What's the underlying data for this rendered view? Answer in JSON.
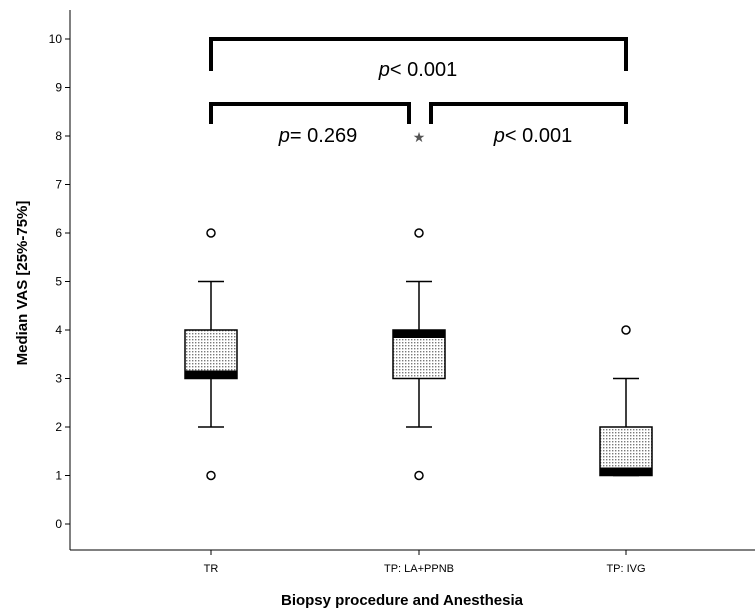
{
  "chart_data": {
    "type": "boxplot",
    "xlabel": "Biopsy procedure and Anesthesia",
    "ylabel": "Median VAS [25%-75%]",
    "ylim": [
      0,
      10
    ],
    "yticks": [
      0,
      1,
      2,
      3,
      4,
      5,
      6,
      7,
      8,
      9,
      10
    ],
    "grid": false,
    "categories": [
      "TR",
      "TP: LA+PPNB",
      "TP: IVG"
    ],
    "boxes": [
      {
        "category": "TR",
        "whisker_low": 2,
        "q1": 3,
        "median": 3,
        "q3": 4,
        "whisker_high": 5,
        "outliers": [
          6,
          1
        ],
        "extremes": []
      },
      {
        "category": "TP: LA+PPNB",
        "whisker_low": 2,
        "q1": 3,
        "median": 4,
        "q3": 4,
        "whisker_high": 5,
        "outliers": [
          6,
          1
        ],
        "extremes": [
          8
        ]
      },
      {
        "category": "TP: IVG",
        "whisker_low": 1,
        "q1": 1,
        "median": 1,
        "q3": 2,
        "whisker_high": 3,
        "outliers": [
          4
        ],
        "extremes": []
      }
    ],
    "comparisons": [
      {
        "from": "TR",
        "to": "TP: IVG",
        "p_symbol": "p",
        "p_text": "< 0.001"
      },
      {
        "from": "TR",
        "to": "TP: LA+PPNB",
        "p_symbol": "p",
        "p_text": "= 0.269"
      },
      {
        "from": "TP: LA+PPNB",
        "to": "TP: IVG",
        "p_symbol": "p",
        "p_text": "< 0.001"
      }
    ],
    "colors": {
      "box_fill": "#d9d9d9",
      "line": "#000000",
      "median": "#000000"
    }
  }
}
